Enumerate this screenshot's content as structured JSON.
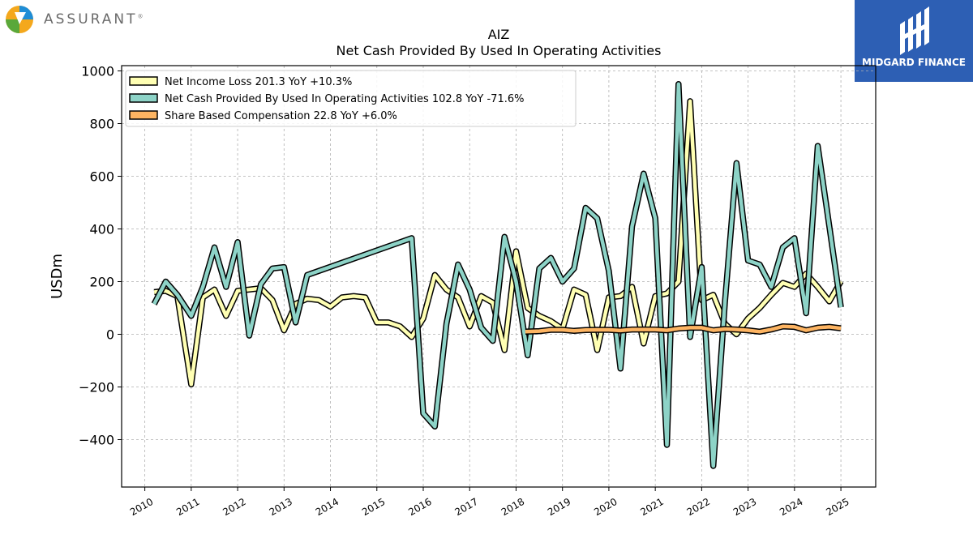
{
  "logos": {
    "assurant_text": "ASSURANT",
    "assurant_mark": "®",
    "midgard_text": "MIDGARD FINANCE"
  },
  "colors": {
    "net_income": "#ffffb3",
    "net_cash": "#8dd3c7",
    "sbc": "#fdb462",
    "midgard_blue": "#2d5fb4"
  },
  "chart_data": {
    "type": "line",
    "title": "AIZ",
    "subtitle": "Net Cash Provided By Used In Operating Activities",
    "ylabel": "USDm",
    "xlabel": "",
    "ylim": [
      -580,
      1020
    ],
    "xlim": [
      2009.5,
      2025.75
    ],
    "yticks": [
      1000,
      800,
      600,
      400,
      200,
      0,
      -200,
      -400
    ],
    "ytick_labels": [
      "1000",
      "800",
      "600",
      "400",
      "200",
      "0",
      "−200",
      "−400"
    ],
    "xticks": [
      2010,
      2011,
      2012,
      2013,
      2014,
      2015,
      2016,
      2017,
      2018,
      2019,
      2020,
      2021,
      2022,
      2023,
      2024,
      2025
    ],
    "xtick_labels": [
      "2010",
      "2011",
      "2012",
      "2013",
      "2014",
      "2015",
      "2016",
      "2017",
      "2018",
      "2019",
      "2020",
      "2021",
      "2022",
      "2023",
      "2024",
      "2025"
    ],
    "grid": true,
    "legend_position": "top-left",
    "series": [
      {
        "name": "Net Income Loss",
        "legend": "Net Income Loss  201.3 YoY +10.3%",
        "color": "#ffffb3",
        "points": [
          [
            2010.2,
            160
          ],
          [
            2010.45,
            165
          ],
          [
            2010.7,
            145
          ],
          [
            2011.0,
            -190
          ],
          [
            2011.25,
            140
          ],
          [
            2011.5,
            170
          ],
          [
            2011.75,
            70
          ],
          [
            2012.0,
            165
          ],
          [
            2012.25,
            170
          ],
          [
            2012.5,
            175
          ],
          [
            2012.75,
            130
          ],
          [
            2013.0,
            15
          ],
          [
            2013.25,
            115
          ],
          [
            2013.5,
            135
          ],
          [
            2013.75,
            130
          ],
          [
            2014.0,
            105
          ],
          [
            2014.25,
            140
          ],
          [
            2014.5,
            145
          ],
          [
            2014.75,
            140
          ],
          [
            2015.0,
            45
          ],
          [
            2015.25,
            45
          ],
          [
            2015.5,
            30
          ],
          [
            2015.75,
            -10
          ],
          [
            2016.0,
            60
          ],
          [
            2016.25,
            225
          ],
          [
            2016.5,
            170
          ],
          [
            2016.75,
            140
          ],
          [
            2017.0,
            30
          ],
          [
            2017.25,
            145
          ],
          [
            2017.5,
            120
          ],
          [
            2017.75,
            -60
          ],
          [
            2018.0,
            315
          ],
          [
            2018.25,
            100
          ],
          [
            2018.5,
            70
          ],
          [
            2018.75,
            50
          ],
          [
            2019.0,
            20
          ],
          [
            2019.25,
            170
          ],
          [
            2019.5,
            150
          ],
          [
            2019.75,
            -60
          ],
          [
            2020.0,
            140
          ],
          [
            2020.25,
            145
          ],
          [
            2020.5,
            180
          ],
          [
            2020.75,
            -35
          ],
          [
            2021.0,
            145
          ],
          [
            2021.25,
            155
          ],
          [
            2021.5,
            200
          ],
          [
            2021.75,
            885
          ],
          [
            2022.0,
            130
          ],
          [
            2022.25,
            150
          ],
          [
            2022.5,
            40
          ],
          [
            2022.75,
            0
          ],
          [
            2023.0,
            60
          ],
          [
            2023.25,
            100
          ],
          [
            2023.5,
            150
          ],
          [
            2023.75,
            195
          ],
          [
            2024.0,
            180
          ],
          [
            2024.25,
            230
          ],
          [
            2024.5,
            180
          ],
          [
            2024.75,
            125
          ],
          [
            2025.0,
            201.3
          ]
        ]
      },
      {
        "name": "Net Cash Provided By Used In Operating Activities",
        "legend": "Net Cash Provided By Used In Operating Activities  102.8 YoY -71.6%",
        "color": "#8dd3c7",
        "points": [
          [
            2010.2,
            115
          ],
          [
            2010.45,
            200
          ],
          [
            2010.7,
            150
          ],
          [
            2011.0,
            70
          ],
          [
            2011.25,
            180
          ],
          [
            2011.5,
            330
          ],
          [
            2011.75,
            180
          ],
          [
            2012.0,
            350
          ],
          [
            2012.25,
            -5
          ],
          [
            2012.5,
            190
          ],
          [
            2012.75,
            250
          ],
          [
            2013.0,
            255
          ],
          [
            2013.25,
            45
          ],
          [
            2013.5,
            225
          ],
          [
            2015.75,
            365
          ],
          [
            2016.0,
            -300
          ],
          [
            2016.25,
            -350
          ],
          [
            2016.5,
            40
          ],
          [
            2016.75,
            265
          ],
          [
            2017.0,
            170
          ],
          [
            2017.25,
            25
          ],
          [
            2017.5,
            -25
          ],
          [
            2017.75,
            370
          ],
          [
            2018.0,
            200
          ],
          [
            2018.25,
            -80
          ],
          [
            2018.5,
            250
          ],
          [
            2018.75,
            290
          ],
          [
            2019.0,
            200
          ],
          [
            2019.25,
            250
          ],
          [
            2019.5,
            480
          ],
          [
            2019.75,
            440
          ],
          [
            2020.0,
            240
          ],
          [
            2020.25,
            -130
          ],
          [
            2020.5,
            410
          ],
          [
            2020.75,
            610
          ],
          [
            2021.0,
            440
          ],
          [
            2021.25,
            -420
          ],
          [
            2021.5,
            950
          ],
          [
            2021.75,
            -10
          ],
          [
            2022.0,
            255
          ],
          [
            2022.25,
            -500
          ],
          [
            2022.5,
            120
          ],
          [
            2022.75,
            650
          ],
          [
            2023.0,
            280
          ],
          [
            2023.25,
            265
          ],
          [
            2023.5,
            180
          ],
          [
            2023.75,
            330
          ],
          [
            2024.0,
            365
          ],
          [
            2024.25,
            80
          ],
          [
            2024.5,
            715
          ],
          [
            2024.75,
            410
          ],
          [
            2025.0,
            102.8
          ]
        ]
      },
      {
        "name": "Share Based Compensation",
        "legend": "Share Based Compensation  22.8 YoY +6.0%",
        "color": "#fdb462",
        "points": [
          [
            2018.2,
            10
          ],
          [
            2018.5,
            12
          ],
          [
            2018.75,
            17
          ],
          [
            2019.0,
            17
          ],
          [
            2019.25,
            13
          ],
          [
            2019.5,
            16
          ],
          [
            2019.75,
            17
          ],
          [
            2020.0,
            17
          ],
          [
            2020.25,
            14
          ],
          [
            2020.5,
            18
          ],
          [
            2020.75,
            18
          ],
          [
            2021.0,
            18
          ],
          [
            2021.25,
            15
          ],
          [
            2021.5,
            22
          ],
          [
            2021.75,
            25
          ],
          [
            2022.0,
            25
          ],
          [
            2022.25,
            15
          ],
          [
            2022.5,
            20
          ],
          [
            2022.75,
            18
          ],
          [
            2023.0,
            15
          ],
          [
            2023.25,
            10
          ],
          [
            2023.5,
            18
          ],
          [
            2023.75,
            30
          ],
          [
            2024.0,
            28
          ],
          [
            2024.25,
            15
          ],
          [
            2024.5,
            25
          ],
          [
            2024.75,
            28
          ],
          [
            2025.0,
            22.8
          ]
        ]
      }
    ]
  }
}
